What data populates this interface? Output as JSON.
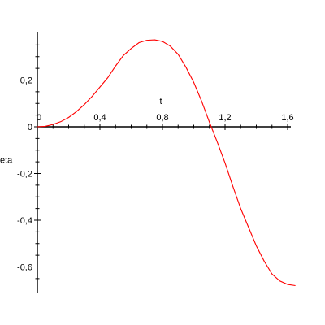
{
  "chart_data": {
    "type": "line",
    "title": "",
    "xlabel": "t",
    "ylabel": "eta",
    "xlim": [
      0,
      1.65
    ],
    "ylim": [
      -0.68,
      0.39
    ],
    "grid": false,
    "legend": "none",
    "x_ticks": [
      {
        "value": 0,
        "label": "0"
      },
      {
        "value": 0.4,
        "label": "0,4"
      },
      {
        "value": 0.8,
        "label": "0,8"
      },
      {
        "value": 1.2,
        "label": "1,2"
      },
      {
        "value": 1.6,
        "label": "1,6"
      }
    ],
    "y_ticks": [
      {
        "value": 0.2,
        "label": "0,2"
      },
      {
        "value": 0,
        "label": "0"
      },
      {
        "value": -0.2,
        "label": "-0,2"
      },
      {
        "value": -0.4,
        "label": "-0,4"
      },
      {
        "value": -0.6,
        "label": "-0,6"
      }
    ],
    "x_minor_step": 0.1,
    "y_minor_step": 0.05,
    "series": [
      {
        "color": "#ff0000",
        "x": [
          0,
          0.05,
          0.1,
          0.15,
          0.2,
          0.25,
          0.3,
          0.35,
          0.4,
          0.45,
          0.5,
          0.55,
          0.6,
          0.65,
          0.7,
          0.75,
          0.8,
          0.85,
          0.9,
          0.95,
          1.0,
          1.05,
          1.1,
          1.15,
          1.2,
          1.25,
          1.3,
          1.35,
          1.4,
          1.45,
          1.5,
          1.55,
          1.6,
          1.65
        ],
        "y": [
          0,
          0.002,
          0.01,
          0.022,
          0.04,
          0.065,
          0.095,
          0.13,
          0.17,
          0.21,
          0.26,
          0.305,
          0.335,
          0.36,
          0.37,
          0.372,
          0.365,
          0.345,
          0.31,
          0.255,
          0.19,
          0.11,
          0.02,
          -0.065,
          -0.155,
          -0.255,
          -0.35,
          -0.43,
          -0.51,
          -0.575,
          -0.63,
          -0.66,
          -0.675,
          -0.68
        ]
      }
    ]
  }
}
